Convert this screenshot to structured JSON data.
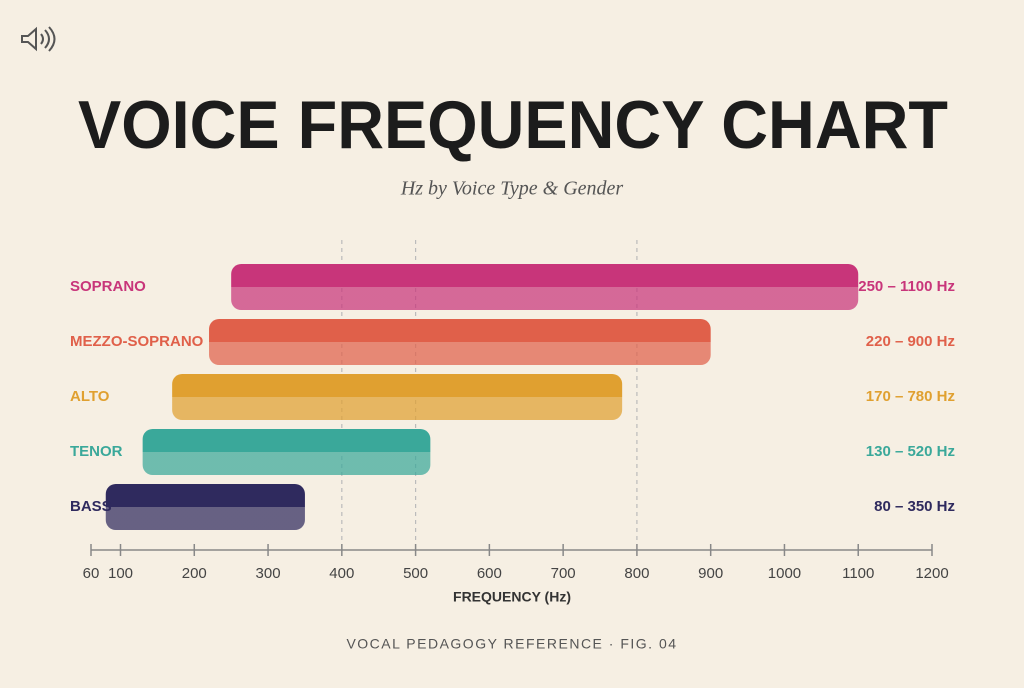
{
  "chart_data": {
    "type": "range-bar",
    "title": "VOICE FREQUENCY CHART",
    "subtitle": "Hz by Voice Type & Gender",
    "xlabel": "FREQUENCY (Hz)",
    "footer": "VOCAL PEDAGOGY REFERENCE · FIG. 04",
    "categories": [
      "SOPRANO",
      "MEZZO-SOPRANO",
      "ALTO",
      "TENOR",
      "BASS"
    ],
    "low": [
      250,
      220,
      170,
      130,
      80
    ],
    "high": [
      1100,
      900,
      780,
      520,
      350
    ],
    "value_labels": [
      "250 – 1100 Hz",
      "220 – 900 Hz",
      "170 – 780 Hz",
      "130 – 520 Hz",
      "80 – 350 Hz"
    ],
    "colors": [
      "#c8357a",
      "#e0604a",
      "#e0a030",
      "#3aa89a",
      "#2f2a5e"
    ],
    "xlim": [
      60,
      1200
    ],
    "xticks": [
      60,
      100,
      200,
      300,
      400,
      500,
      600,
      700,
      800,
      900,
      1000,
      1100,
      1200
    ],
    "reference_lines": [
      400,
      500,
      800
    ]
  }
}
